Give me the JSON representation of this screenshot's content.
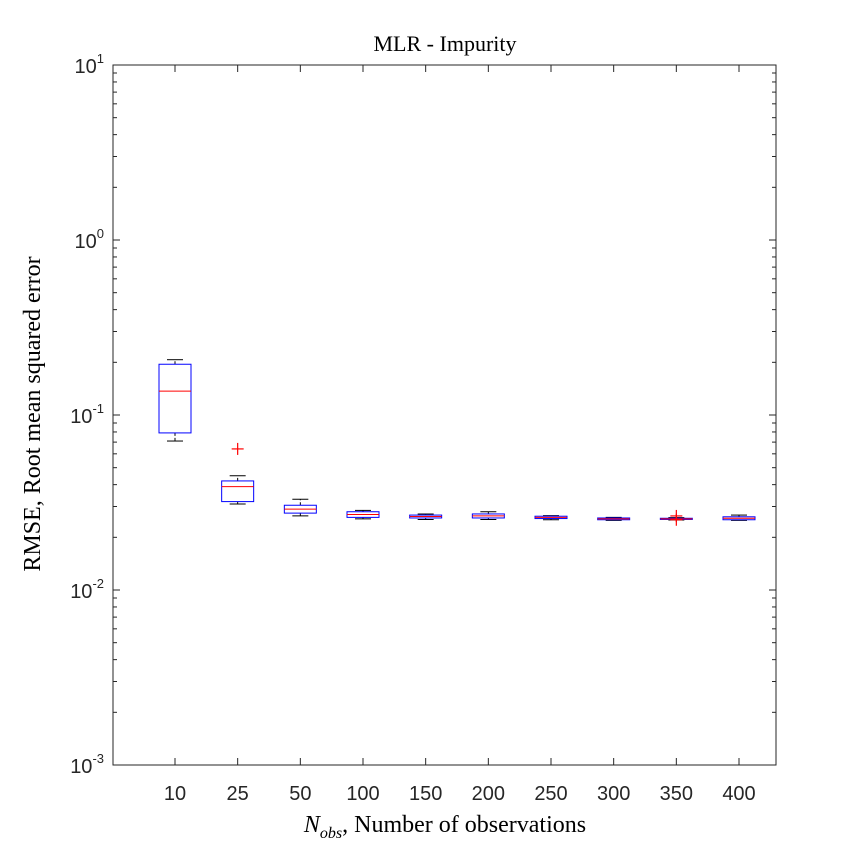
{
  "chart_data": {
    "type": "box",
    "title": "MLR - Impurity",
    "xlabel_prefix": "N",
    "xlabel_subscript": "obs",
    "xlabel_suffix": ", Number of observations",
    "ylabel": "RMSE, Root mean squared error",
    "yscale": "log",
    "ylim": [
      0.001,
      10
    ],
    "y_tick_base": "10",
    "y_tick_exponents": [
      "-3",
      "-2",
      "-1",
      "0",
      "1"
    ],
    "categories": [
      "10",
      "25",
      "50",
      "100",
      "150",
      "200",
      "250",
      "300",
      "350",
      "400"
    ],
    "boxes": [
      {
        "category": "10",
        "whisker_low": 0.071,
        "q1": 0.079,
        "median": 0.137,
        "q3": 0.195,
        "whisker_high": 0.207,
        "outliers": []
      },
      {
        "category": "25",
        "whisker_low": 0.031,
        "q1": 0.032,
        "median": 0.039,
        "q3": 0.042,
        "whisker_high": 0.045,
        "outliers": [
          0.064
        ]
      },
      {
        "category": "50",
        "whisker_low": 0.0265,
        "q1": 0.0275,
        "median": 0.029,
        "q3": 0.0305,
        "whisker_high": 0.033,
        "outliers": []
      },
      {
        "category": "100",
        "whisker_low": 0.0255,
        "q1": 0.026,
        "median": 0.027,
        "q3": 0.028,
        "whisker_high": 0.0285,
        "outliers": []
      },
      {
        "category": "150",
        "whisker_low": 0.0253,
        "q1": 0.0258,
        "median": 0.0263,
        "q3": 0.0268,
        "whisker_high": 0.0272,
        "outliers": []
      },
      {
        "category": "200",
        "whisker_low": 0.0253,
        "q1": 0.0258,
        "median": 0.0265,
        "q3": 0.0272,
        "whisker_high": 0.028,
        "outliers": []
      },
      {
        "category": "250",
        "whisker_low": 0.0252,
        "q1": 0.0256,
        "median": 0.026,
        "q3": 0.0264,
        "whisker_high": 0.0266,
        "outliers": []
      },
      {
        "category": "300",
        "whisker_low": 0.025,
        "q1": 0.0252,
        "median": 0.0255,
        "q3": 0.0258,
        "whisker_high": 0.026,
        "outliers": []
      },
      {
        "category": "350",
        "whisker_low": 0.0251,
        "q1": 0.0253,
        "median": 0.0255,
        "q3": 0.0257,
        "whisker_high": 0.0259,
        "outliers": [
          0.0265,
          0.0252
        ]
      },
      {
        "category": "400",
        "whisker_low": 0.025,
        "q1": 0.0252,
        "median": 0.0257,
        "q3": 0.0262,
        "whisker_high": 0.0268,
        "outliers": []
      }
    ],
    "colors": {
      "box": "#0000ff",
      "median": "#ff0000",
      "whisker": "#000000",
      "outlier": "#ff0000",
      "axis": "#262626"
    },
    "grid": false,
    "legend": "none"
  }
}
